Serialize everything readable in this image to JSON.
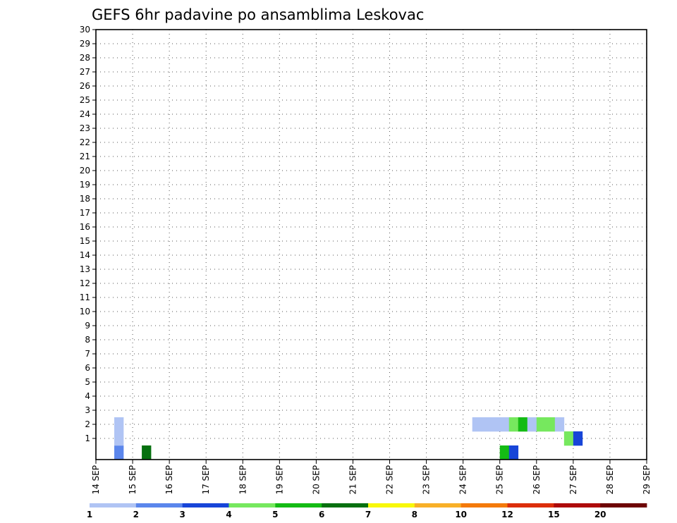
{
  "chart_data": {
    "type": "heatmap",
    "title": "GEFS 6hr padavine po ansamblima Leskovac",
    "xlabel": "",
    "ylabel": "",
    "x_ticks": [
      "14 SEP",
      "15 SEP",
      "16 SEP",
      "17 SEP",
      "18 SEP",
      "19 SEP",
      "20 SEP",
      "21 SEP",
      "22 SEP",
      "23 SEP",
      "24 SEP",
      "25 SEP",
      "26 SEP",
      "27 SEP",
      "28 SEP",
      "29 SEP"
    ],
    "y_ticks": [
      "1",
      "2",
      "3",
      "4",
      "5",
      "6",
      "7",
      "8",
      "9",
      "10",
      "11",
      "12",
      "13",
      "14",
      "15",
      "16",
      "17",
      "18",
      "19",
      "20",
      "21",
      "22",
      "23",
      "24",
      "25",
      "26",
      "27",
      "28",
      "29",
      "30"
    ],
    "xlim_days": [
      14,
      29
    ],
    "ylim_members": [
      0,
      30
    ],
    "time_step_hours": 6,
    "grid": "dotted",
    "colorbar": {
      "placement": "bottom",
      "labels": [
        "1",
        "2",
        "3",
        "4",
        "5",
        "6",
        "7",
        "8",
        "10",
        "12",
        "15",
        "20"
      ],
      "colors": [
        "#b0c4f4",
        "#5b86ec",
        "#1745d8",
        "#76e85e",
        "#14bb14",
        "#06700f",
        "#f8f80a",
        "#f8b028",
        "#f47a0a",
        "#dc2e0a",
        "#ae0a0a",
        "#6e0404"
      ]
    },
    "cells": [
      {
        "day": 14.5,
        "member": 0,
        "cls": 2
      },
      {
        "day": 15.25,
        "member": 0,
        "cls": 6
      },
      {
        "day": 25.0,
        "member": 0,
        "cls": 5
      },
      {
        "day": 25.25,
        "member": 0,
        "cls": 3
      },
      {
        "day": 14.5,
        "member": 1,
        "cls": 1
      },
      {
        "day": 26.75,
        "member": 1,
        "cls": 4
      },
      {
        "day": 27.0,
        "member": 1,
        "cls": 3
      },
      {
        "day": 14.5,
        "member": 2,
        "cls": 1
      },
      {
        "day": 24.25,
        "member": 2,
        "cls": 1
      },
      {
        "day": 24.5,
        "member": 2,
        "cls": 1
      },
      {
        "day": 24.75,
        "member": 2,
        "cls": 1
      },
      {
        "day": 25.0,
        "member": 2,
        "cls": 1
      },
      {
        "day": 25.25,
        "member": 2,
        "cls": 4
      },
      {
        "day": 25.5,
        "member": 2,
        "cls": 5
      },
      {
        "day": 25.75,
        "member": 2,
        "cls": 1
      },
      {
        "day": 26.0,
        "member": 2,
        "cls": 4
      },
      {
        "day": 26.25,
        "member": 2,
        "cls": 4
      },
      {
        "day": 26.5,
        "member": 2,
        "cls": 1
      }
    ]
  }
}
